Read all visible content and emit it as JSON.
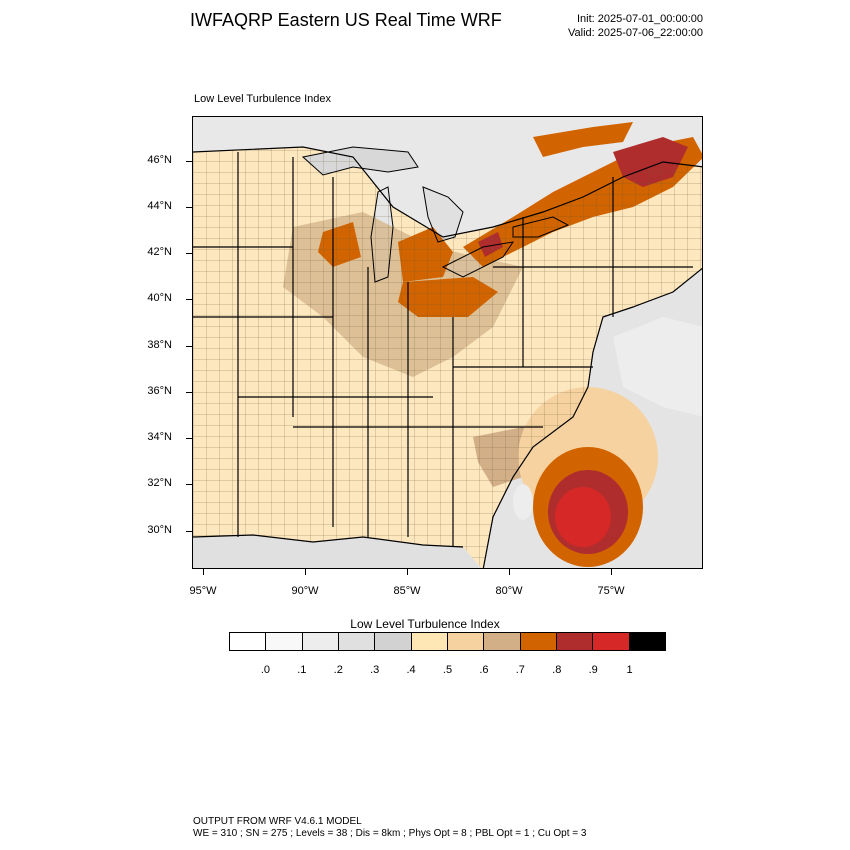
{
  "header": {
    "title": "IWFAQRP Eastern US Real Time WRF",
    "init": "Init: 2025-07-01_00:00:00",
    "valid": "Valid: 2025-07-06_22:00:00"
  },
  "map": {
    "field_label": "Low Level Turbulence Index",
    "lat_labels": [
      "46°N",
      "44°N",
      "42°N",
      "40°N",
      "38°N",
      "36°N",
      "34°N",
      "32°N",
      "30°N"
    ],
    "lon_labels": [
      "95°W",
      "90°W",
      "85°W",
      "80°W",
      "75°W"
    ],
    "land_color": "#fde7bf",
    "water_color": "#e6e6e6"
  },
  "colorbar": {
    "title": "Low Level Turbulence Index",
    "colors": [
      "#ffffff",
      "#f8f8f8",
      "#ededed",
      "#e0e0e0",
      "#d2d2d2",
      "#ffe6b4",
      "#f5d2a0",
      "#d2af87",
      "#d26400",
      "#af2d2d",
      "#d72828",
      "#000000"
    ],
    "tick_labels": [
      ".0",
      ".1",
      ".2",
      ".3",
      ".4",
      ".5",
      ".6",
      ".7",
      ".8",
      ".9",
      "1"
    ]
  },
  "footer": {
    "line1": "OUTPUT FROM WRF V4.6.1 MODEL",
    "line2": "WE = 310 ; SN = 275 ; Levels = 38 ; Dis = 8km ; Phys Opt = 8 ; PBL Opt = 1 ; Cu Opt = 3"
  }
}
